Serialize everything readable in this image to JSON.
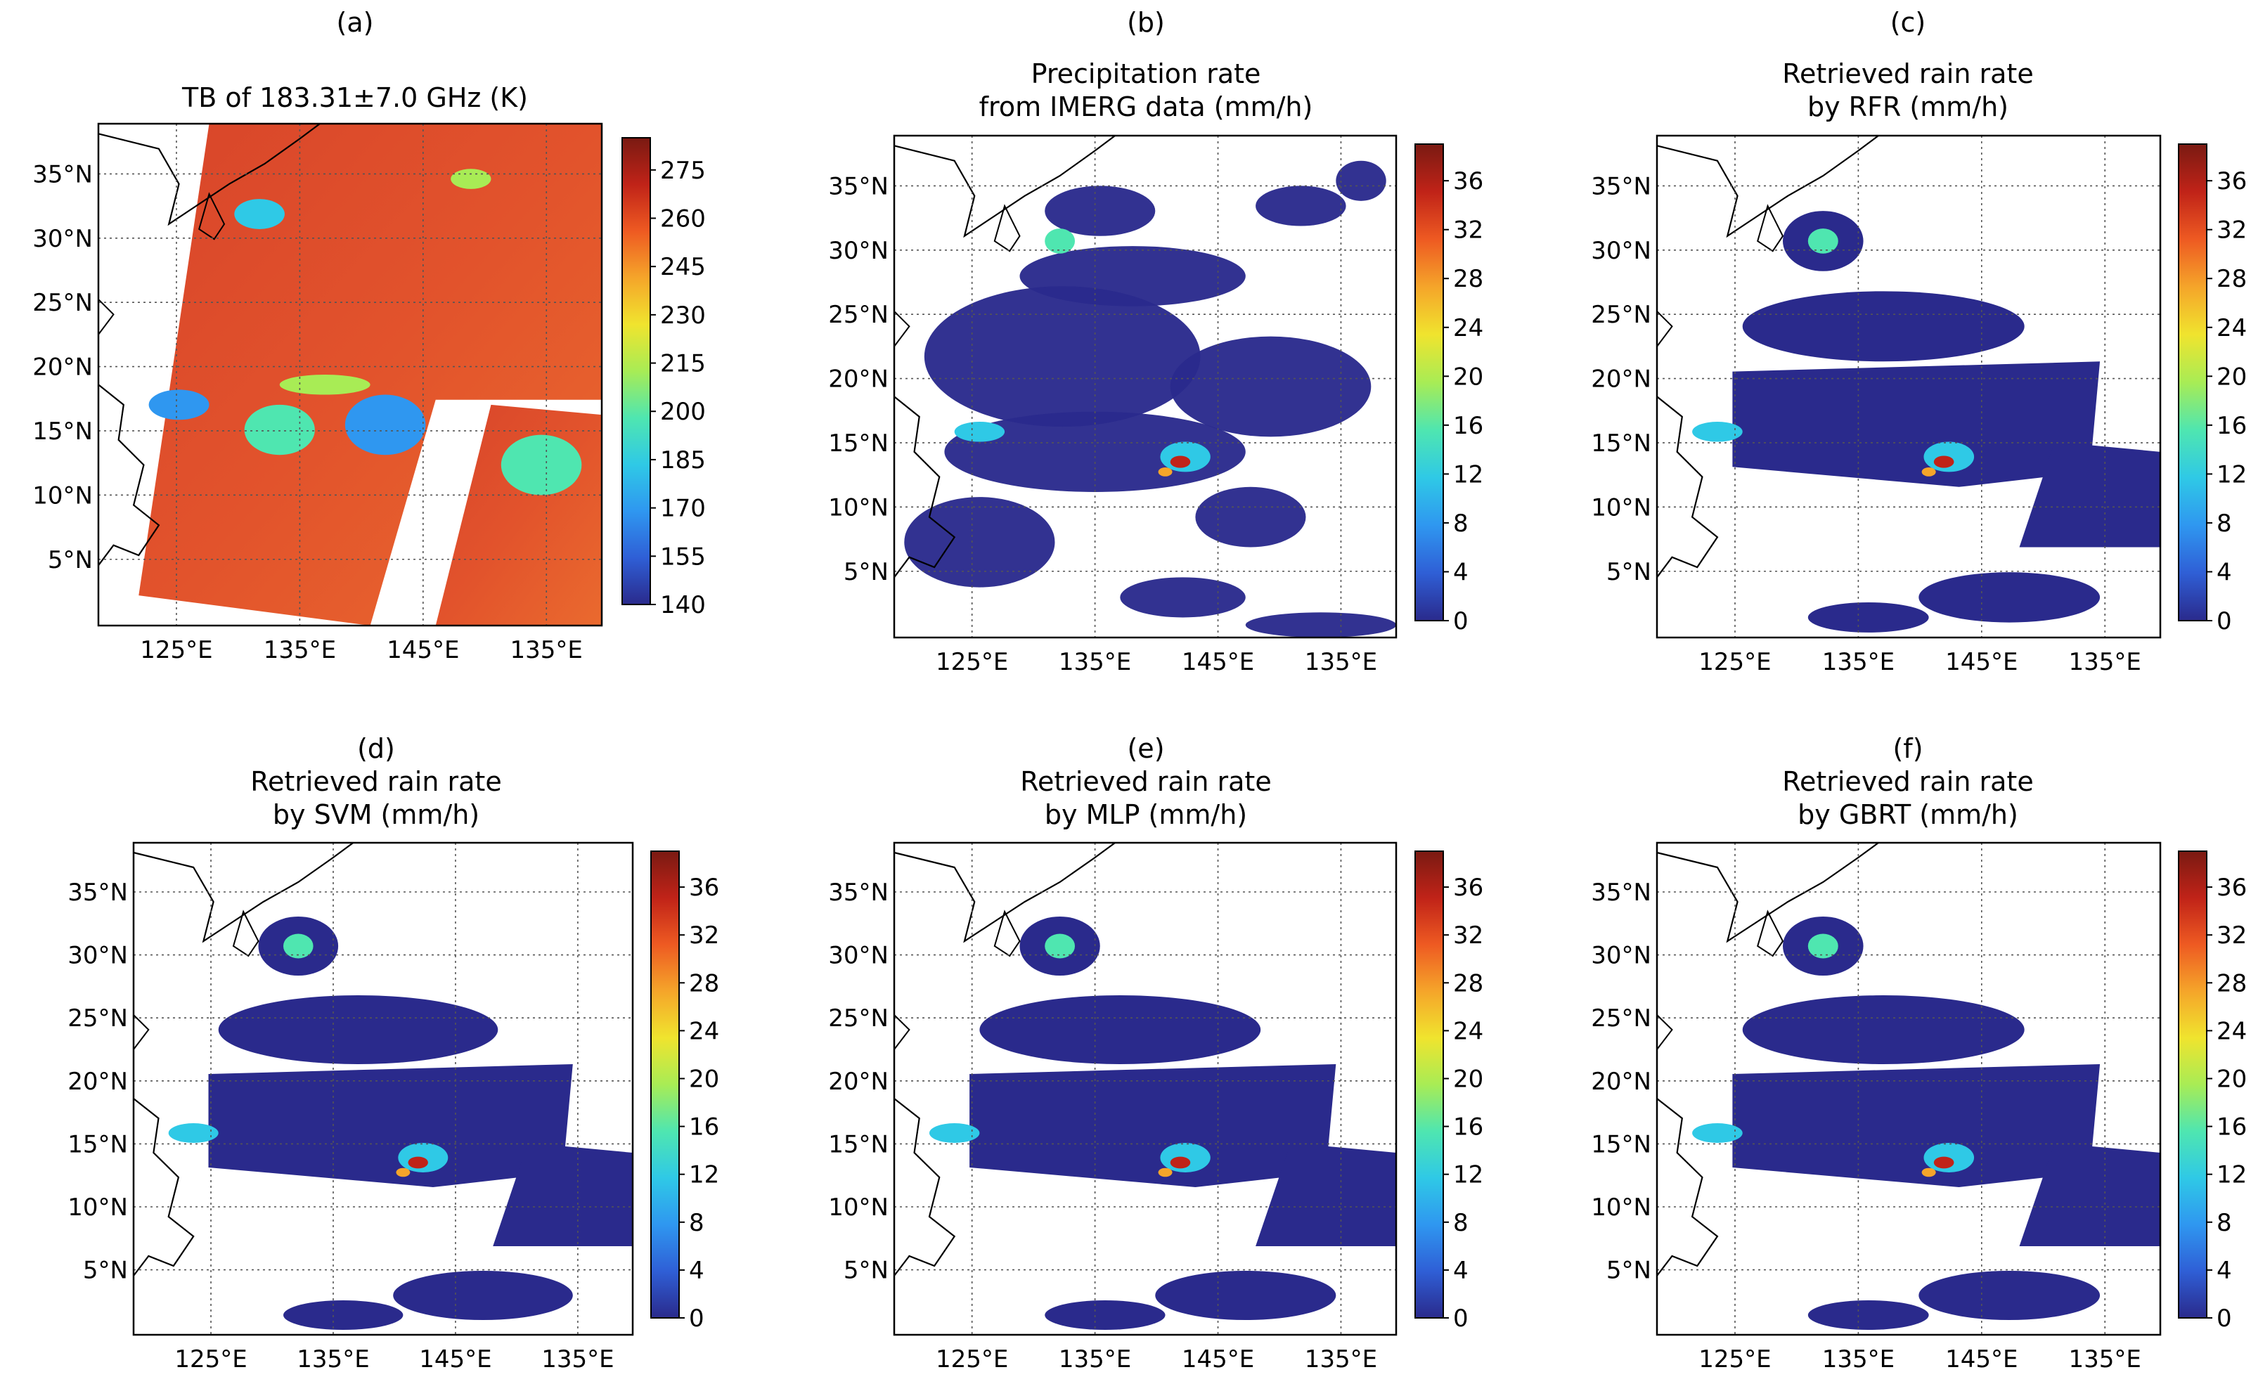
{
  "figure_label": "six-panel precipitation retrieval maps",
  "colormap": [
    "#2a2a8c",
    "#2f5fd6",
    "#2f97f0",
    "#2fc9e6",
    "#4fe6b0",
    "#a8ec55",
    "#f0e42e",
    "#f5a52a",
    "#ee5a22",
    "#c02318",
    "#7a1a12"
  ],
  "chart_data": [
    {
      "type": "heatmap",
      "label": "(a)",
      "title_lines": [
        "TB of 183.31±7.0 GHz (K)"
      ],
      "y_ticks": [
        "35°N",
        "30°N",
        "25°N",
        "20°N",
        "15°N",
        "10°N",
        "5°N"
      ],
      "x_ticks": [
        "125°E",
        "135°E",
        "145°E",
        "135°E"
      ],
      "colorbar": {
        "ticks": [
          "275",
          "260",
          "245",
          "230",
          "215",
          "200",
          "185",
          "170",
          "155",
          "140"
        ],
        "range": [
          140,
          285
        ],
        "units": "K"
      },
      "field": "brightness temperature"
    },
    {
      "type": "heatmap",
      "label": "(b)",
      "title_lines": [
        "Precipitation rate",
        "from IMERG data (mm/h)"
      ],
      "y_ticks": [
        "35°N",
        "30°N",
        "25°N",
        "20°N",
        "15°N",
        "10°N",
        "5°N"
      ],
      "x_ticks": [
        "125°E",
        "135°E",
        "145°E",
        "135°E"
      ],
      "colorbar": {
        "ticks": [
          "36",
          "32",
          "28",
          "24",
          "20",
          "16",
          "12",
          "8",
          "4",
          "0"
        ],
        "range": [
          0,
          39
        ],
        "units": "mm/h"
      },
      "field": "precipitation rate"
    },
    {
      "type": "heatmap",
      "label": "(c)",
      "title_lines": [
        "Retrieved rain rate",
        "by RFR (mm/h)"
      ],
      "y_ticks": [
        "35°N",
        "30°N",
        "25°N",
        "20°N",
        "15°N",
        "10°N",
        "5°N"
      ],
      "x_ticks": [
        "125°E",
        "135°E",
        "145°E",
        "135°E"
      ],
      "colorbar": {
        "ticks": [
          "36",
          "32",
          "28",
          "24",
          "20",
          "16",
          "12",
          "8",
          "4",
          "0"
        ],
        "range": [
          0,
          39
        ],
        "units": "mm/h"
      },
      "field": "retrieved rain rate"
    },
    {
      "type": "heatmap",
      "label": "(d)",
      "title_lines": [
        "Retrieved rain rate",
        "by SVM (mm/h)"
      ],
      "y_ticks": [
        "35°N",
        "30°N",
        "25°N",
        "20°N",
        "15°N",
        "10°N",
        "5°N"
      ],
      "x_ticks": [
        "125°E",
        "135°E",
        "145°E",
        "135°E"
      ],
      "colorbar": {
        "ticks": [
          "36",
          "32",
          "28",
          "24",
          "20",
          "16",
          "12",
          "8",
          "4",
          "0"
        ],
        "range": [
          0,
          39
        ],
        "units": "mm/h"
      },
      "field": "retrieved rain rate"
    },
    {
      "type": "heatmap",
      "label": "(e)",
      "title_lines": [
        "Retrieved rain rate",
        "by MLP (mm/h)"
      ],
      "y_ticks": [
        "35°N",
        "30°N",
        "25°N",
        "20°N",
        "15°N",
        "10°N",
        "5°N"
      ],
      "x_ticks": [
        "125°E",
        "135°E",
        "145°E",
        "135°E"
      ],
      "colorbar": {
        "ticks": [
          "36",
          "32",
          "28",
          "24",
          "20",
          "16",
          "12",
          "8",
          "4",
          "0"
        ],
        "range": [
          0,
          39
        ],
        "units": "mm/h"
      },
      "field": "retrieved rain rate"
    },
    {
      "type": "heatmap",
      "label": "(f)",
      "title_lines": [
        "Retrieved rain rate",
        "by GBRT (mm/h)"
      ],
      "y_ticks": [
        "35°N",
        "30°N",
        "25°N",
        "20°N",
        "15°N",
        "10°N",
        "5°N"
      ],
      "x_ticks": [
        "125°E",
        "135°E",
        "145°E",
        "135°E"
      ],
      "colorbar": {
        "ticks": [
          "36",
          "32",
          "28",
          "24",
          "20",
          "16",
          "12",
          "8",
          "4",
          "0"
        ],
        "range": [
          0,
          39
        ],
        "units": "mm/h"
      },
      "field": "retrieved rain rate"
    }
  ]
}
